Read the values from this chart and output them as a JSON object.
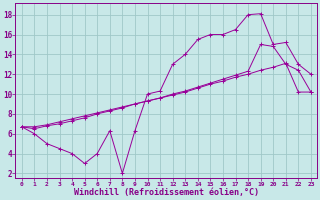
{
  "background_color": "#c8e8e8",
  "grid_color": "#a0c8c8",
  "line_color": "#990099",
  "xlabel": "Windchill (Refroidissement éolien,°C)",
  "xlabel_fontsize": 6.0,
  "ylabel_ticks": [
    2,
    4,
    6,
    8,
    10,
    12,
    14,
    16,
    18
  ],
  "xlim": [
    -0.5,
    23.5
  ],
  "ylim": [
    1.5,
    19.2
  ],
  "line1_x": [
    0,
    1,
    2,
    3,
    4,
    5,
    6,
    7,
    8,
    9,
    10,
    11,
    12,
    13,
    14,
    15,
    16,
    17,
    18,
    19,
    20,
    21,
    22,
    23
  ],
  "line1_y": [
    6.7,
    6.0,
    5.0,
    4.5,
    4.0,
    3.0,
    4.0,
    6.3,
    2.0,
    6.3,
    10.0,
    10.3,
    13.0,
    14.0,
    15.5,
    16.0,
    16.0,
    16.5,
    18.0,
    18.1,
    15.0,
    15.2,
    13.0,
    12.0
  ],
  "line2_x": [
    0,
    1,
    2,
    3,
    4,
    5,
    6,
    7,
    8,
    9,
    10,
    11,
    12,
    13,
    14,
    15,
    16,
    17,
    18,
    19,
    20,
    21,
    22,
    23
  ],
  "line2_y": [
    6.7,
    6.7,
    6.9,
    7.2,
    7.5,
    7.8,
    8.1,
    8.4,
    8.7,
    9.0,
    9.3,
    9.6,
    9.9,
    10.2,
    10.6,
    11.0,
    11.3,
    11.7,
    12.0,
    12.4,
    12.7,
    13.1,
    10.2,
    10.2
  ],
  "line3_x": [
    0,
    1,
    2,
    3,
    4,
    5,
    6,
    7,
    8,
    9,
    10,
    11,
    12,
    13,
    14,
    15,
    16,
    17,
    18,
    19,
    20,
    21,
    22,
    23
  ],
  "line3_y": [
    6.7,
    6.5,
    6.8,
    7.0,
    7.3,
    7.6,
    8.0,
    8.3,
    8.6,
    9.0,
    9.3,
    9.6,
    10.0,
    10.3,
    10.7,
    11.1,
    11.5,
    11.9,
    12.3,
    15.0,
    14.8,
    13.0,
    12.4,
    10.2
  ]
}
